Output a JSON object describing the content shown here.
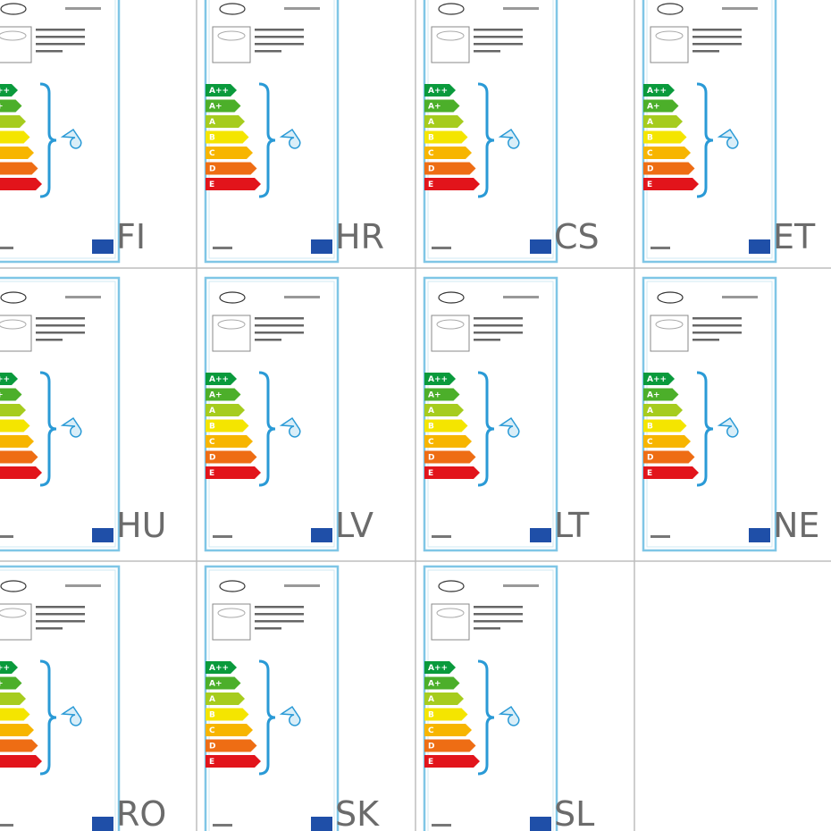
{
  "panels": [
    {
      "code": "FI"
    },
    {
      "code": "HR"
    },
    {
      "code": "CS"
    },
    {
      "code": "ET"
    },
    {
      "code": "HU"
    },
    {
      "code": "LV"
    },
    {
      "code": "LT"
    },
    {
      "code": "NE"
    },
    {
      "code": "RO"
    },
    {
      "code": "SK"
    },
    {
      "code": "SL"
    }
  ],
  "energy_classes": [
    "A++",
    "A+",
    "A",
    "B",
    "C",
    "D",
    "E"
  ]
}
